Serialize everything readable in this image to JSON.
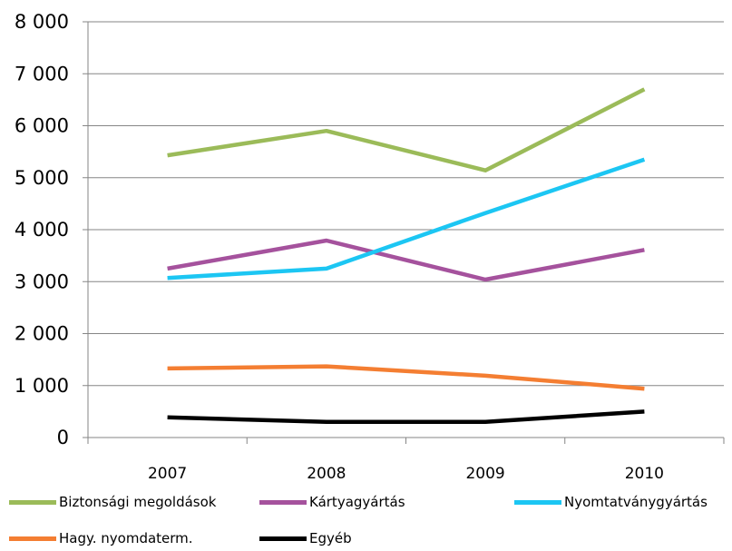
{
  "chart_data": {
    "type": "line",
    "title": "",
    "xlabel": "",
    "ylabel": "",
    "categories": [
      "2007",
      "2008",
      "2009",
      "2010"
    ],
    "ylim": [
      0,
      8000
    ],
    "yticks": [
      "0",
      "1 000",
      "2 000",
      "3 000",
      "4 000",
      "5 000",
      "6 000",
      "7 000",
      "8 000"
    ],
    "grid": true,
    "legend_position": "bottom",
    "series": [
      {
        "name": "Biztonsági megoldások",
        "color": "#9BBB59",
        "values": [
          5430,
          5900,
          5140,
          6700
        ]
      },
      {
        "name": "Kártyagyártás",
        "color": "#A5529D",
        "values": [
          3250,
          3790,
          3040,
          3610
        ]
      },
      {
        "name": "Nyomtatványgyártás",
        "color": "#1CC6F3",
        "values": [
          3070,
          3250,
          4320,
          5350
        ]
      },
      {
        "name": "Hagy. nyomdaterm.",
        "color": "#F47E32",
        "values": [
          1330,
          1370,
          1190,
          940
        ]
      },
      {
        "name": "Egyéb",
        "color": "#000000",
        "values": [
          390,
          300,
          300,
          500
        ]
      }
    ]
  }
}
